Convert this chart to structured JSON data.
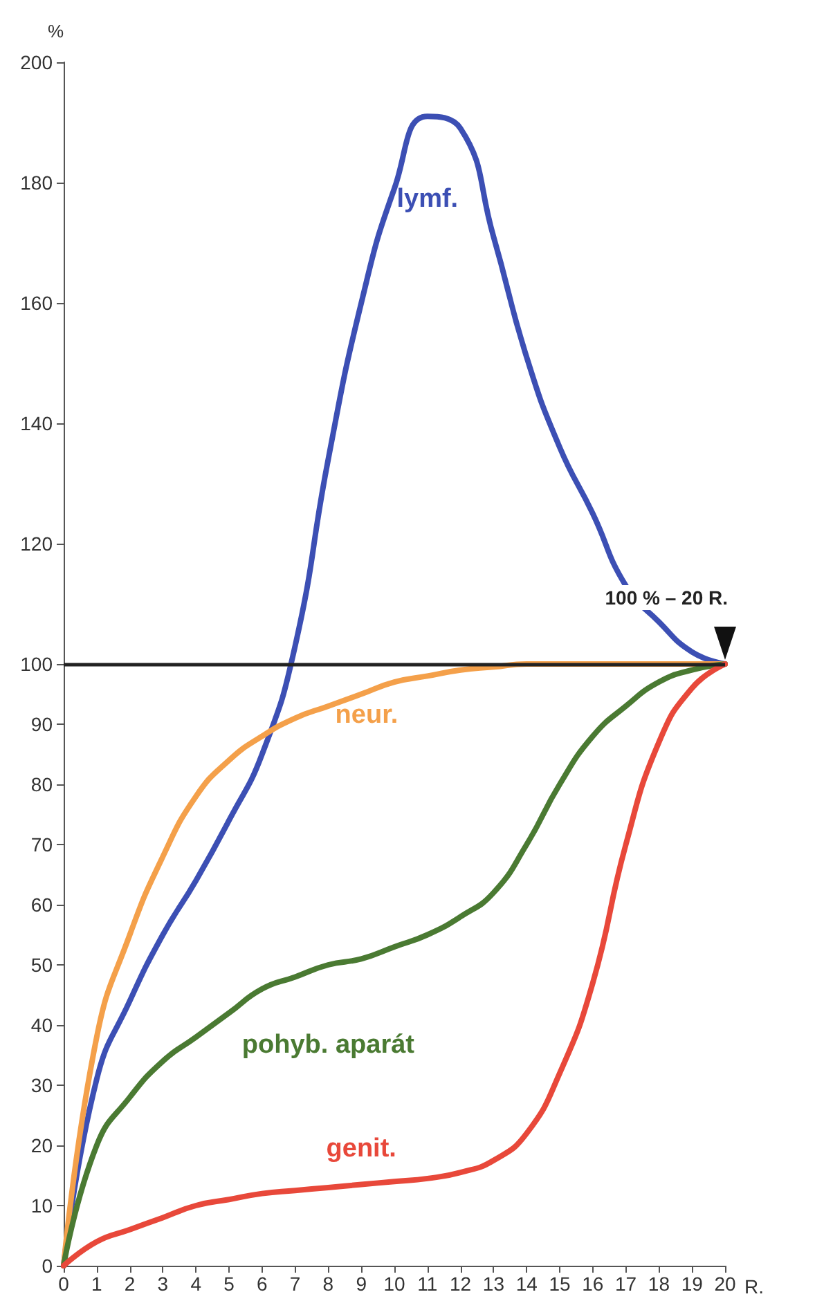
{
  "chart_data": {
    "type": "line",
    "xlabel": "R.",
    "ylabel": "%",
    "x": [
      0,
      1,
      2,
      3,
      4,
      5,
      6,
      7,
      8,
      9,
      10,
      11,
      12,
      13,
      14,
      15,
      16,
      17,
      18,
      19,
      20
    ],
    "series": [
      {
        "name": "lymf.",
        "color": "#3c4fb4",
        "values": [
          0,
          31,
          44,
          55,
          64,
          74,
          85,
          103,
          134,
          160,
          179,
          191,
          189,
          171,
          151,
          136,
          125,
          113,
          107,
          102,
          100
        ]
      },
      {
        "name": "neur.",
        "color": "#f4a04a",
        "values": [
          0,
          38,
          55,
          68,
          78,
          84,
          88,
          91,
          93,
          95,
          97,
          98,
          99,
          99.5,
          100,
          100,
          100,
          100,
          100,
          100,
          100
        ]
      },
      {
        "name": "pohyb. aparát",
        "color": "#4a7a32",
        "values": [
          0,
          20,
          28,
          34,
          38,
          42,
          46,
          48,
          50,
          51,
          53,
          55,
          58,
          62,
          70,
          80,
          88,
          93,
          97,
          99,
          100
        ]
      },
      {
        "name": "genit.",
        "color": "#e8483a",
        "values": [
          0,
          4,
          6,
          8,
          10,
          11,
          12,
          12.5,
          13,
          13.5,
          14,
          14.5,
          15.5,
          17.5,
          22,
          32,
          47,
          70,
          87,
          96,
          100
        ]
      }
    ],
    "xlim": [
      0,
      20
    ],
    "xticks": [
      0,
      1,
      2,
      3,
      4,
      5,
      6,
      7,
      8,
      9,
      10,
      11,
      12,
      13,
      14,
      15,
      16,
      17,
      18,
      19,
      20
    ],
    "ylim": [
      0,
      200
    ],
    "yticks": [
      0,
      10,
      20,
      30,
      40,
      50,
      60,
      70,
      80,
      90,
      100,
      120,
      140,
      160,
      180,
      200
    ],
    "ref_lines": [
      {
        "axis": "y",
        "value": 100,
        "color": "#222222"
      }
    ],
    "annotations": [
      {
        "text": "100 % – 20 R.",
        "x": 20,
        "y": 100
      }
    ],
    "grid": false,
    "legend": false,
    "marker": "none",
    "line_style": "solid"
  }
}
